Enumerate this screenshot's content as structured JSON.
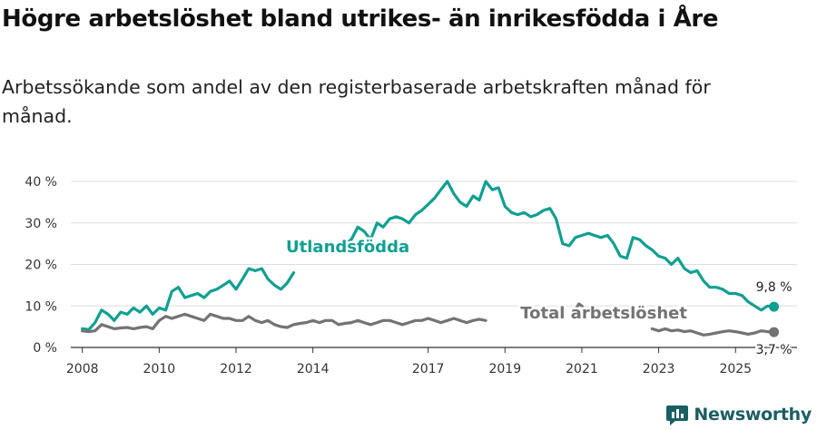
{
  "header": {
    "title": "Högre arbetslöshet bland utrikes- än inrikesfödda i Åre",
    "subtitle": "Arbetssökande som andel av den registerbaserade arbetskraften månad för månad."
  },
  "brand": {
    "name": "Newsworthy",
    "icon": "newsworthy-logo-icon"
  },
  "colors": {
    "foreign_born": "#0f9f92",
    "total": "#737373",
    "grid": "#dedede",
    "axis": "#333333"
  },
  "chart_data": {
    "type": "line",
    "title": "Högre arbetslöshet bland utrikes- än inrikesfödda i Åre",
    "subtitle": "Arbetssökande som andel av den registerbaserade arbetskraften månad för månad.",
    "xlabel": "",
    "ylabel": "",
    "xlim": [
      2007.7,
      2026.6
    ],
    "ylim": [
      0,
      40
    ],
    "yticks": [
      0,
      10,
      20,
      30,
      40
    ],
    "ytick_labels": [
      "0 %",
      "10 %",
      "20 %",
      "30 %",
      "40 %"
    ],
    "xticks": [
      2008,
      2010,
      2012,
      2014,
      2017,
      2019,
      2021,
      2023,
      2025
    ],
    "xtick_labels": [
      "2008",
      "2010",
      "2012",
      "2014",
      "2017",
      "2019",
      "2021",
      "2023",
      "2025"
    ],
    "grid": true,
    "series": [
      {
        "name": "Utlandsfödda",
        "end_label": "9,8 %",
        "points": [
          [
            2008.0,
            4.5
          ],
          [
            2008.17,
            4.3
          ],
          [
            2008.33,
            6.0
          ],
          [
            2008.5,
            9.0
          ],
          [
            2008.67,
            8.0
          ],
          [
            2008.83,
            6.5
          ],
          [
            2009.0,
            8.5
          ],
          [
            2009.17,
            8.0
          ],
          [
            2009.33,
            9.5
          ],
          [
            2009.5,
            8.5
          ],
          [
            2009.67,
            10.0
          ],
          [
            2009.83,
            8.0
          ],
          [
            2010.0,
            9.5
          ],
          [
            2010.17,
            9.0
          ],
          [
            2010.33,
            13.5
          ],
          [
            2010.5,
            14.5
          ],
          [
            2010.67,
            12.0
          ],
          [
            2010.83,
            12.5
          ],
          [
            2011.0,
            13.0
          ],
          [
            2011.17,
            12.0
          ],
          [
            2011.33,
            13.5
          ],
          [
            2011.5,
            14.0
          ],
          [
            2011.67,
            15.0
          ],
          [
            2011.83,
            16.0
          ],
          [
            2012.0,
            14.0
          ],
          [
            2012.17,
            16.5
          ],
          [
            2012.33,
            19.0
          ],
          [
            2012.5,
            18.5
          ],
          [
            2012.67,
            19.0
          ],
          [
            2012.83,
            16.5
          ],
          [
            2013.0,
            15.0
          ],
          [
            2013.17,
            14.0
          ],
          [
            2013.33,
            15.5
          ],
          [
            2013.5,
            18.0
          ],
          [
            2013.67,
            null
          ],
          [
            2014.67,
            null
          ],
          [
            2014.83,
            25.0
          ],
          [
            2015.0,
            26.0
          ],
          [
            2015.17,
            29.0
          ],
          [
            2015.33,
            28.0
          ],
          [
            2015.5,
            26.0
          ],
          [
            2015.67,
            30.0
          ],
          [
            2015.83,
            29.0
          ],
          [
            2016.0,
            31.0
          ],
          [
            2016.17,
            31.5
          ],
          [
            2016.33,
            31.0
          ],
          [
            2016.5,
            30.0
          ],
          [
            2016.67,
            32.0
          ],
          [
            2016.83,
            33.0
          ],
          [
            2017.0,
            34.5
          ],
          [
            2017.17,
            36.0
          ],
          [
            2017.33,
            38.0
          ],
          [
            2017.5,
            40.0
          ],
          [
            2017.67,
            37.0
          ],
          [
            2017.83,
            35.0
          ],
          [
            2018.0,
            34.0
          ],
          [
            2018.17,
            36.5
          ],
          [
            2018.33,
            35.5
          ],
          [
            2018.5,
            40.0
          ],
          [
            2018.67,
            38.0
          ],
          [
            2018.83,
            38.5
          ],
          [
            2019.0,
            34.0
          ],
          [
            2019.17,
            32.5
          ],
          [
            2019.33,
            32.0
          ],
          [
            2019.5,
            32.5
          ],
          [
            2019.67,
            31.5
          ],
          [
            2019.83,
            32.0
          ],
          [
            2020.0,
            33.0
          ],
          [
            2020.17,
            33.5
          ],
          [
            2020.33,
            31.0
          ],
          [
            2020.5,
            25.0
          ],
          [
            2020.67,
            24.5
          ],
          [
            2020.83,
            26.5
          ],
          [
            2021.0,
            27.0
          ],
          [
            2021.17,
            27.5
          ],
          [
            2021.33,
            27.0
          ],
          [
            2021.5,
            26.5
          ],
          [
            2021.67,
            27.0
          ],
          [
            2021.83,
            25.0
          ],
          [
            2022.0,
            22.0
          ],
          [
            2022.17,
            21.5
          ],
          [
            2022.33,
            26.5
          ],
          [
            2022.5,
            26.0
          ],
          [
            2022.67,
            24.5
          ],
          [
            2022.83,
            23.5
          ],
          [
            2023.0,
            22.0
          ],
          [
            2023.17,
            21.5
          ],
          [
            2023.33,
            20.0
          ],
          [
            2023.5,
            21.5
          ],
          [
            2023.67,
            19.0
          ],
          [
            2023.83,
            18.0
          ],
          [
            2024.0,
            18.5
          ],
          [
            2024.17,
            16.0
          ],
          [
            2024.33,
            14.5
          ],
          [
            2024.5,
            14.5
          ],
          [
            2024.67,
            14.0
          ],
          [
            2024.83,
            13.0
          ],
          [
            2025.0,
            13.0
          ],
          [
            2025.17,
            12.5
          ],
          [
            2025.33,
            11.0
          ],
          [
            2025.5,
            10.0
          ],
          [
            2025.67,
            9.0
          ],
          [
            2025.83,
            10.0
          ],
          [
            2026.0,
            9.8
          ]
        ]
      },
      {
        "name": "Total arbetslöshet",
        "end_label": "3,7 %",
        "points": [
          [
            2008.0,
            4.0
          ],
          [
            2008.17,
            3.8
          ],
          [
            2008.33,
            4.0
          ],
          [
            2008.5,
            5.5
          ],
          [
            2008.67,
            5.0
          ],
          [
            2008.83,
            4.5
          ],
          [
            2009.0,
            4.7
          ],
          [
            2009.17,
            4.8
          ],
          [
            2009.33,
            4.5
          ],
          [
            2009.5,
            4.8
          ],
          [
            2009.67,
            5.0
          ],
          [
            2009.83,
            4.5
          ],
          [
            2010.0,
            6.5
          ],
          [
            2010.17,
            7.5
          ],
          [
            2010.33,
            7.0
          ],
          [
            2010.5,
            7.5
          ],
          [
            2010.67,
            8.0
          ],
          [
            2010.83,
            7.5
          ],
          [
            2011.0,
            7.0
          ],
          [
            2011.17,
            6.5
          ],
          [
            2011.33,
            8.0
          ],
          [
            2011.5,
            7.5
          ],
          [
            2011.67,
            7.0
          ],
          [
            2011.83,
            7.0
          ],
          [
            2012.0,
            6.5
          ],
          [
            2012.17,
            6.5
          ],
          [
            2012.33,
            7.5
          ],
          [
            2012.5,
            6.5
          ],
          [
            2012.67,
            6.0
          ],
          [
            2012.83,
            6.5
          ],
          [
            2013.0,
            5.5
          ],
          [
            2013.17,
            5.0
          ],
          [
            2013.33,
            4.8
          ],
          [
            2013.5,
            5.5
          ],
          [
            2013.67,
            5.8
          ],
          [
            2013.83,
            6.0
          ],
          [
            2014.0,
            6.5
          ],
          [
            2014.17,
            6.0
          ],
          [
            2014.33,
            6.5
          ],
          [
            2014.5,
            6.5
          ],
          [
            2014.67,
            5.5
          ],
          [
            2014.83,
            5.8
          ],
          [
            2015.0,
            6.0
          ],
          [
            2015.17,
            6.5
          ],
          [
            2015.33,
            6.0
          ],
          [
            2015.5,
            5.5
          ],
          [
            2015.67,
            6.0
          ],
          [
            2015.83,
            6.5
          ],
          [
            2016.0,
            6.5
          ],
          [
            2016.17,
            6.0
          ],
          [
            2016.33,
            5.5
          ],
          [
            2016.5,
            6.0
          ],
          [
            2016.67,
            6.5
          ],
          [
            2016.83,
            6.5
          ],
          [
            2017.0,
            7.0
          ],
          [
            2017.17,
            6.5
          ],
          [
            2017.33,
            6.0
          ],
          [
            2017.5,
            6.5
          ],
          [
            2017.67,
            7.0
          ],
          [
            2017.83,
            6.5
          ],
          [
            2018.0,
            6.0
          ],
          [
            2018.17,
            6.5
          ],
          [
            2018.33,
            6.8
          ],
          [
            2018.5,
            6.5
          ],
          [
            2018.67,
            null
          ],
          [
            2020.67,
            null
          ],
          [
            2020.83,
            9.0
          ],
          [
            2020.92,
            10.5
          ],
          [
            2021.0,
            10.0
          ],
          [
            2021.08,
            8.5
          ],
          [
            2021.17,
            null
          ],
          [
            2022.67,
            null
          ],
          [
            2022.83,
            4.5
          ],
          [
            2023.0,
            4.0
          ],
          [
            2023.17,
            4.5
          ],
          [
            2023.33,
            4.0
          ],
          [
            2023.5,
            4.2
          ],
          [
            2023.67,
            3.8
          ],
          [
            2023.83,
            4.0
          ],
          [
            2024.0,
            3.5
          ],
          [
            2024.17,
            3.0
          ],
          [
            2024.33,
            3.2
          ],
          [
            2024.5,
            3.5
          ],
          [
            2024.67,
            3.8
          ],
          [
            2024.83,
            4.0
          ],
          [
            2025.0,
            3.8
          ],
          [
            2025.17,
            3.5
          ],
          [
            2025.33,
            3.2
          ],
          [
            2025.5,
            3.5
          ],
          [
            2025.67,
            4.0
          ],
          [
            2025.83,
            3.8
          ],
          [
            2026.0,
            3.7
          ]
        ]
      }
    ],
    "annotations": [
      {
        "text": "Utlandsfödda",
        "series": 0,
        "x": 2013.3,
        "y": 23.0
      },
      {
        "text": "Total arbetslöshet",
        "series": 1,
        "x": 2019.4,
        "y": 7.0
      }
    ]
  }
}
